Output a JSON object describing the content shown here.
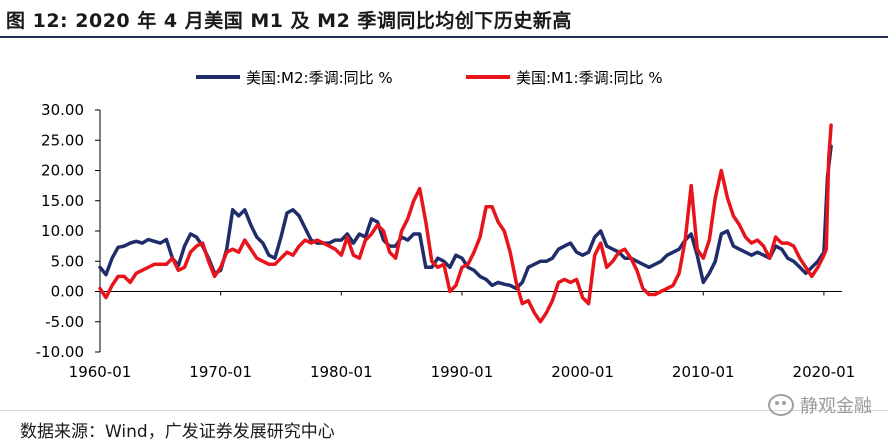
{
  "header": {
    "title": "图 12:  2020 年 4 月美国 M1 及 M2 季调同比均创下历史新高"
  },
  "footer": {
    "source": "数据来源：Wind，广发证券发展研究中心",
    "watermark": "静观金融"
  },
  "colors": {
    "m2": "#1f2d6b",
    "m1": "#e8141b",
    "axis": "#000000"
  },
  "chart_data": {
    "type": "line",
    "title": "",
    "xlabel": "",
    "ylabel": "",
    "ylim": [
      -10,
      30
    ],
    "yticks": [
      "30.00",
      "25.00",
      "20.00",
      "15.00",
      "10.00",
      "5.00",
      "0.00",
      "-5.00",
      "-10.00"
    ],
    "ytick_values": [
      30,
      25,
      20,
      15,
      10,
      5,
      0,
      -5,
      -10
    ],
    "xlim": [
      1960.0,
      2021.5
    ],
    "xticks": [
      "1960-01",
      "1970-01",
      "1980-01",
      "1990-01",
      "2000-01",
      "2010-01",
      "2020-01"
    ],
    "xtick_values": [
      1960,
      1970,
      1980,
      1990,
      2000,
      2010,
      2020
    ],
    "legend": "top-center",
    "series": [
      {
        "name": "美国:M2:季调:同比 %",
        "x": [
          1960.0,
          1960.5,
          1961.0,
          1961.5,
          1962.0,
          1962.5,
          1963.0,
          1963.5,
          1964.0,
          1964.5,
          1965.0,
          1965.5,
          1966.0,
          1966.5,
          1967.0,
          1967.5,
          1968.0,
          1968.5,
          1969.0,
          1969.5,
          1970.0,
          1970.5,
          1971.0,
          1971.5,
          1972.0,
          1972.5,
          1973.0,
          1973.5,
          1974.0,
          1974.5,
          1975.0,
          1975.5,
          1976.0,
          1976.5,
          1977.0,
          1977.5,
          1978.0,
          1978.5,
          1979.0,
          1979.5,
          1980.0,
          1980.5,
          1981.0,
          1981.5,
          1982.0,
          1982.5,
          1983.0,
          1983.5,
          1984.0,
          1984.5,
          1985.0,
          1985.5,
          1986.0,
          1986.5,
          1987.0,
          1987.5,
          1988.0,
          1988.5,
          1989.0,
          1989.5,
          1990.0,
          1990.5,
          1991.0,
          1991.5,
          1992.0,
          1992.5,
          1993.0,
          1993.5,
          1994.0,
          1994.5,
          1995.0,
          1995.5,
          1996.0,
          1996.5,
          1997.0,
          1997.5,
          1998.0,
          1998.5,
          1999.0,
          1999.5,
          2000.0,
          2000.5,
          2001.0,
          2001.5,
          2002.0,
          2002.5,
          2003.0,
          2003.5,
          2004.0,
          2004.5,
          2005.0,
          2005.5,
          2006.0,
          2006.5,
          2007.0,
          2007.5,
          2008.0,
          2008.5,
          2009.0,
          2009.5,
          2010.0,
          2010.5,
          2011.0,
          2011.5,
          2012.0,
          2012.5,
          2013.0,
          2013.5,
          2014.0,
          2014.5,
          2015.0,
          2015.5,
          2016.0,
          2016.5,
          2017.0,
          2017.5,
          2018.0,
          2018.5,
          2019.0,
          2019.5,
          2020.0,
          2020.3,
          2020.6
        ],
        "values": [
          4.0,
          2.8,
          5.5,
          7.3,
          7.5,
          8.0,
          8.3,
          8.0,
          8.6,
          8.3,
          8.0,
          8.6,
          5.5,
          4.3,
          7.5,
          9.5,
          9.0,
          7.5,
          5.5,
          3.0,
          3.5,
          7.0,
          13.5,
          12.5,
          13.5,
          11.0,
          9.0,
          8.0,
          6.0,
          5.5,
          9.0,
          13.0,
          13.5,
          12.5,
          10.5,
          8.5,
          8.0,
          8.0,
          8.0,
          8.5,
          8.5,
          9.5,
          8.0,
          9.5,
          9.0,
          12.0,
          11.5,
          8.5,
          7.5,
          7.5,
          9.0,
          8.5,
          9.5,
          9.5,
          4.0,
          4.0,
          5.5,
          5.0,
          4.0,
          6.0,
          5.5,
          4.0,
          3.5,
          2.5,
          2.0,
          1.0,
          1.5,
          1.2,
          1.0,
          0.5,
          1.5,
          4.0,
          4.5,
          5.0,
          5.0,
          5.5,
          7.0,
          7.5,
          8.0,
          6.5,
          6.0,
          6.5,
          9.0,
          10.0,
          7.5,
          7.0,
          6.5,
          5.5,
          5.5,
          5.0,
          4.5,
          4.0,
          4.5,
          5.0,
          6.0,
          6.5,
          7.0,
          8.5,
          9.5,
          6.0,
          1.5,
          3.0,
          5.0,
          9.5,
          10.0,
          7.5,
          7.0,
          6.5,
          6.0,
          6.5,
          6.0,
          5.5,
          7.5,
          7.0,
          5.5,
          5.0,
          4.0,
          3.0,
          4.0,
          5.0,
          6.5,
          19.0,
          24.0
        ]
      },
      {
        "name": "美国:M1:季调:同比 %",
        "x": [
          1960.0,
          1960.5,
          1961.0,
          1961.5,
          1962.0,
          1962.5,
          1963.0,
          1963.5,
          1964.0,
          1964.5,
          1965.0,
          1965.5,
          1966.0,
          1966.5,
          1967.0,
          1967.5,
          1968.0,
          1968.5,
          1969.0,
          1969.5,
          1970.0,
          1970.5,
          1971.0,
          1971.5,
          1972.0,
          1972.5,
          1973.0,
          1973.5,
          1974.0,
          1974.5,
          1975.0,
          1975.5,
          1976.0,
          1976.5,
          1977.0,
          1977.5,
          1978.0,
          1978.5,
          1979.0,
          1979.5,
          1980.0,
          1980.5,
          1981.0,
          1981.5,
          1982.0,
          1982.5,
          1983.0,
          1983.5,
          1984.0,
          1984.5,
          1985.0,
          1985.5,
          1986.0,
          1986.5,
          1987.0,
          1987.5,
          1988.0,
          1988.5,
          1989.0,
          1989.5,
          1990.0,
          1990.5,
          1991.0,
          1991.5,
          1992.0,
          1992.5,
          1993.0,
          1993.5,
          1994.0,
          1994.5,
          1995.0,
          1995.5,
          1996.0,
          1996.5,
          1997.0,
          1997.5,
          1998.0,
          1998.5,
          1999.0,
          1999.5,
          2000.0,
          2000.5,
          2001.0,
          2001.5,
          2002.0,
          2002.5,
          2003.0,
          2003.5,
          2004.0,
          2004.5,
          2005.0,
          2005.5,
          2006.0,
          2006.5,
          2007.0,
          2007.5,
          2008.0,
          2008.5,
          2009.0,
          2009.5,
          2010.0,
          2010.5,
          2011.0,
          2011.5,
          2012.0,
          2012.5,
          2013.0,
          2013.5,
          2014.0,
          2014.5,
          2015.0,
          2015.5,
          2016.0,
          2016.5,
          2017.0,
          2017.5,
          2018.0,
          2018.5,
          2019.0,
          2019.5,
          2020.0,
          2020.2,
          2020.4,
          2020.6
        ],
        "values": [
          0.5,
          -1.0,
          1.0,
          2.5,
          2.5,
          1.5,
          3.0,
          3.5,
          4.0,
          4.5,
          4.5,
          4.5,
          5.5,
          3.5,
          4.0,
          6.5,
          7.5,
          8.0,
          5.0,
          2.5,
          4.0,
          6.5,
          7.0,
          6.5,
          8.5,
          7.0,
          5.5,
          5.0,
          4.5,
          4.5,
          5.5,
          6.5,
          6.0,
          7.5,
          8.5,
          8.0,
          8.5,
          8.0,
          7.5,
          7.0,
          6.0,
          9.0,
          6.0,
          5.5,
          8.5,
          9.5,
          11.0,
          10.0,
          6.5,
          5.5,
          10.0,
          12.0,
          15.0,
          17.0,
          11.5,
          5.0,
          4.0,
          4.5,
          0.0,
          1.0,
          4.0,
          4.5,
          6.5,
          9.0,
          14.0,
          14.0,
          11.5,
          10.0,
          6.5,
          1.5,
          -2.0,
          -1.5,
          -3.5,
          -5.0,
          -3.5,
          -1.5,
          1.5,
          2.0,
          1.5,
          2.0,
          -1.0,
          -2.0,
          6.0,
          8.0,
          4.0,
          5.0,
          6.5,
          7.0,
          5.5,
          3.5,
          0.5,
          -0.5,
          -0.5,
          0.0,
          0.5,
          1.0,
          3.0,
          8.5,
          17.5,
          7.0,
          5.5,
          8.5,
          15.5,
          20.0,
          15.5,
          12.5,
          11.0,
          9.0,
          8.0,
          8.5,
          7.5,
          5.5,
          9.0,
          8.0,
          8.0,
          7.5,
          5.5,
          4.0,
          2.5,
          4.0,
          6.0,
          7.0,
          22.0,
          27.5
        ]
      }
    ]
  }
}
